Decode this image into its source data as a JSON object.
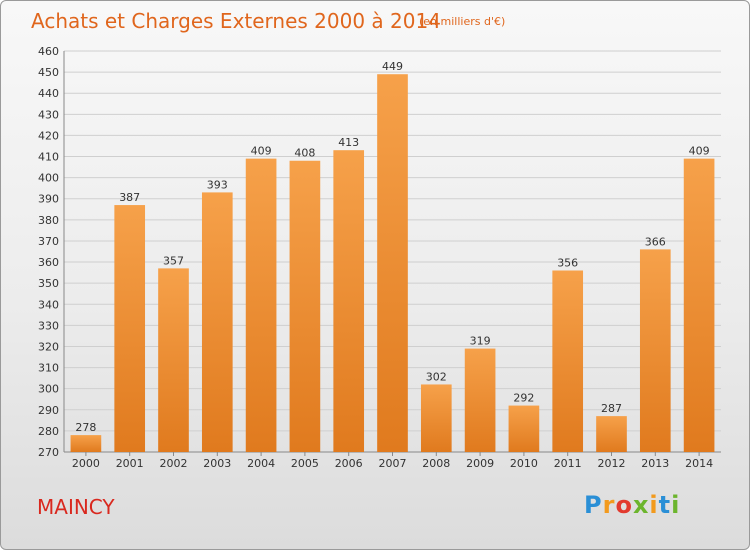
{
  "chart_data": {
    "type": "bar",
    "title": "Achats et Charges Externes 2000 à 2014",
    "subtitle": "(en milliers d'€)",
    "categories": [
      "2000",
      "2001",
      "2002",
      "2003",
      "2004",
      "2005",
      "2006",
      "2007",
      "2008",
      "2009",
      "2010",
      "2011",
      "2012",
      "2013",
      "2014"
    ],
    "values": [
      278,
      387,
      357,
      393,
      409,
      408,
      413,
      449,
      302,
      319,
      292,
      356,
      287,
      366,
      409
    ],
    "xlabel": "",
    "ylabel": "",
    "ylim": [
      270,
      460
    ],
    "yticks": [
      270,
      280,
      290,
      300,
      310,
      320,
      330,
      340,
      350,
      360,
      370,
      380,
      390,
      400,
      410,
      420,
      430,
      440,
      450,
      460
    ],
    "grid": true,
    "bar_color": "#f0923a"
  },
  "place": "MAINCY",
  "logo": {
    "letters": [
      "P",
      "r",
      "o",
      "x",
      "i",
      "t",
      "i"
    ],
    "colors": [
      "#2a8fd6",
      "#f29a1d",
      "#e23a2e",
      "#6cb52d",
      "#f29a1d",
      "#2a8fd6",
      "#6cb52d"
    ]
  }
}
